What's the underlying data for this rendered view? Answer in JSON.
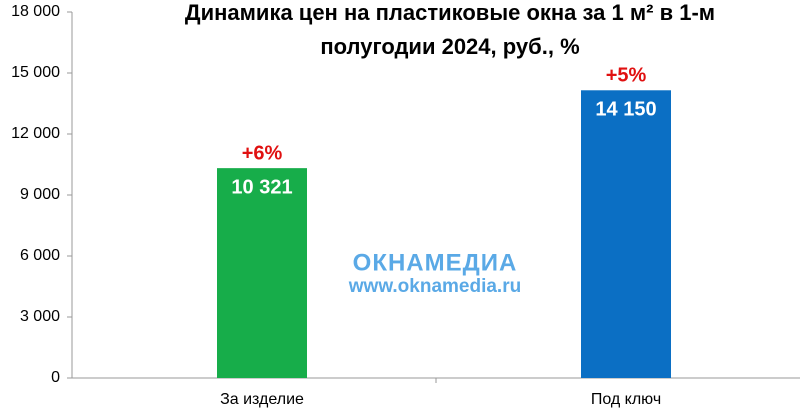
{
  "chart_data": {
    "type": "bar",
    "title": [
      "Динамика цен на пластиковые окна за 1 м² в 1-м",
      "полугодии 2024, руб., %"
    ],
    "categories": [
      "За изделие",
      "Под ключ"
    ],
    "values": [
      10321,
      14150
    ],
    "value_labels": [
      "10 321",
      "14 150"
    ],
    "annotations": [
      "+6%",
      "+5%"
    ],
    "colors": [
      "#17ad4a",
      "#0b6fc4"
    ],
    "ylim": [
      0,
      18000
    ],
    "yticks": [
      0,
      {
        "value": 3000,
        "label": "3 000"
      },
      {
        "value": 6000,
        "label": "6 000"
      },
      {
        "value": 9000,
        "label": "9 000"
      },
      {
        "value": 12000,
        "label": "12 000"
      },
      {
        "value": 15000,
        "label": "15 000"
      },
      {
        "value": 18000,
        "label": "18 000"
      }
    ],
    "grid": false,
    "watermark": {
      "brand": "ОКНАМЕДИА",
      "url": "www.oknamedia.ru"
    }
  }
}
